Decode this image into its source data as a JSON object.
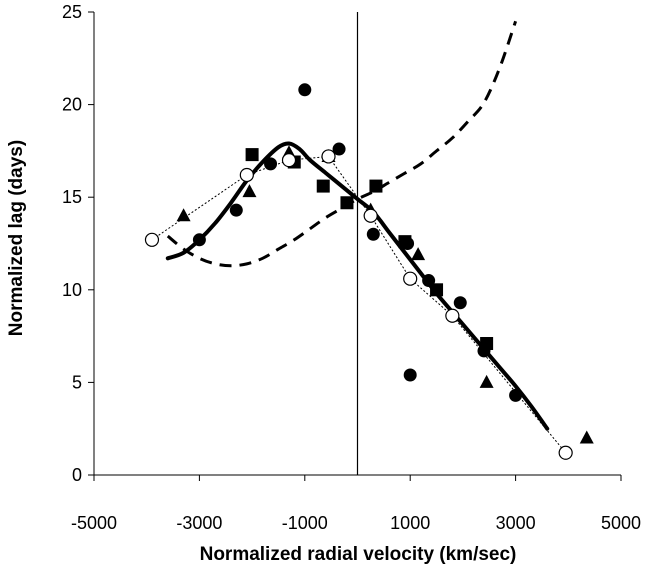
{
  "chart_data": {
    "type": "scatter",
    "title": "",
    "xlabel": "Normalized radial velocity (km/sec)",
    "ylabel": "Normalized lag (days)",
    "xlim": [
      -5000,
      5000
    ],
    "ylim": [
      0,
      25
    ],
    "xticks": [
      -5000,
      -3000,
      -1000,
      1000,
      3000,
      5000
    ],
    "xtick_labels": [
      "-5000",
      "-3000",
      "-1000",
      "1000",
      "3000",
      "5000"
    ],
    "yticks": [
      0,
      5,
      10,
      15,
      20,
      25
    ],
    "ytick_labels": [
      "0",
      "5",
      "10",
      "15",
      "20",
      "25"
    ],
    "vertical_line_x": 0,
    "grid": false,
    "series": [
      {
        "name": "filled circles",
        "marker": "filled-circle",
        "x": [
          -3000,
          -2300,
          -1650,
          -1000,
          -350,
          300,
          950,
          1350,
          1950,
          2400,
          3000,
          1000
        ],
        "y": [
          12.7,
          14.3,
          16.8,
          20.8,
          17.6,
          13.0,
          12.5,
          10.5,
          9.3,
          6.7,
          4.3,
          5.4
        ]
      },
      {
        "name": "filled squares",
        "marker": "filled-square",
        "x": [
          -2000,
          -1200,
          -650,
          -200,
          350,
          900,
          1500,
          2450
        ],
        "y": [
          17.3,
          16.9,
          15.6,
          14.7,
          15.6,
          12.6,
          10.0,
          7.1
        ]
      },
      {
        "name": "filled triangles",
        "marker": "filled-triangle",
        "x": [
          -3300,
          -2050,
          -1300,
          -550,
          250,
          1150,
          2450,
          4350
        ],
        "y": [
          14.0,
          15.3,
          17.4,
          17.2,
          14.3,
          11.9,
          5.0,
          2.0
        ]
      },
      {
        "name": "open circles",
        "marker": "open-circle",
        "connected": "dotted",
        "x": [
          -3900,
          -2100,
          -1300,
          -550,
          250,
          1000,
          1800,
          3950
        ],
        "y": [
          12.7,
          16.2,
          17.0,
          17.2,
          14.0,
          10.6,
          8.6,
          1.2
        ]
      },
      {
        "name": "model curve (solid)",
        "line": "solid-thick",
        "x": [
          -3600,
          -3300,
          -3000,
          -2700,
          -2400,
          -2100,
          -1800,
          -1500,
          -1300,
          -1100,
          -900,
          -600,
          -300,
          0,
          300,
          600,
          900,
          1200,
          1500,
          1800,
          2100,
          2400,
          2700,
          3000,
          3300,
          3600
        ],
        "y": [
          11.7,
          12.0,
          12.7,
          13.6,
          14.7,
          15.9,
          16.9,
          17.7,
          17.9,
          17.6,
          17.0,
          16.3,
          15.6,
          14.9,
          14.2,
          13.1,
          12.0,
          10.9,
          9.8,
          8.8,
          7.8,
          6.8,
          5.8,
          4.8,
          3.7,
          2.5
        ]
      },
      {
        "name": "model curve (dashed)",
        "line": "dashed-thick",
        "x": [
          -3600,
          -3300,
          -3000,
          -2700,
          -2400,
          -2100,
          -1800,
          -1500,
          -1200,
          -900,
          -600,
          -300,
          0,
          300,
          600,
          900,
          1200,
          1500,
          1800,
          2100,
          2400,
          2700,
          3000
        ],
        "y": [
          12.9,
          12.2,
          11.7,
          11.4,
          11.3,
          11.4,
          11.7,
          12.2,
          12.7,
          13.3,
          13.9,
          14.4,
          14.9,
          15.3,
          15.8,
          16.3,
          16.8,
          17.5,
          18.2,
          19.1,
          20.1,
          22.0,
          24.5
        ]
      }
    ]
  }
}
